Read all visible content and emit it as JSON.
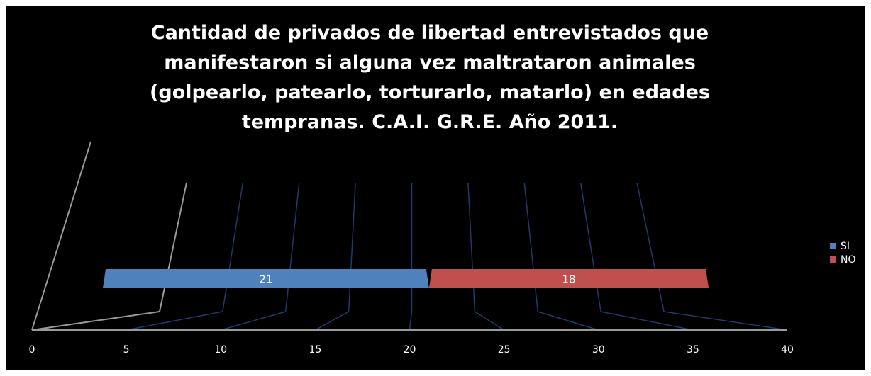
{
  "chart_data": {
    "type": "bar",
    "orientation": "horizontal",
    "stacked": true,
    "three_d": true,
    "title": "Cantidad de privados de libertad entrevistados que manifestaron si alguna vez maltrataron  animales (golpearlo, patearlo, torturarlo, matarlo) en edades tempranas. C.A.I. G.R.E. Año 2011.",
    "categories": [
      null
    ],
    "series": [
      {
        "name": "SI",
        "color": "#4f81bd",
        "values": [
          21
        ]
      },
      {
        "name": "NO",
        "color": "#c0504d",
        "values": [
          18
        ]
      }
    ],
    "xlim": [
      0,
      40
    ],
    "xticks": [
      0,
      5,
      10,
      15,
      20,
      25,
      30,
      35,
      40
    ],
    "grid": true,
    "legend": "right"
  }
}
